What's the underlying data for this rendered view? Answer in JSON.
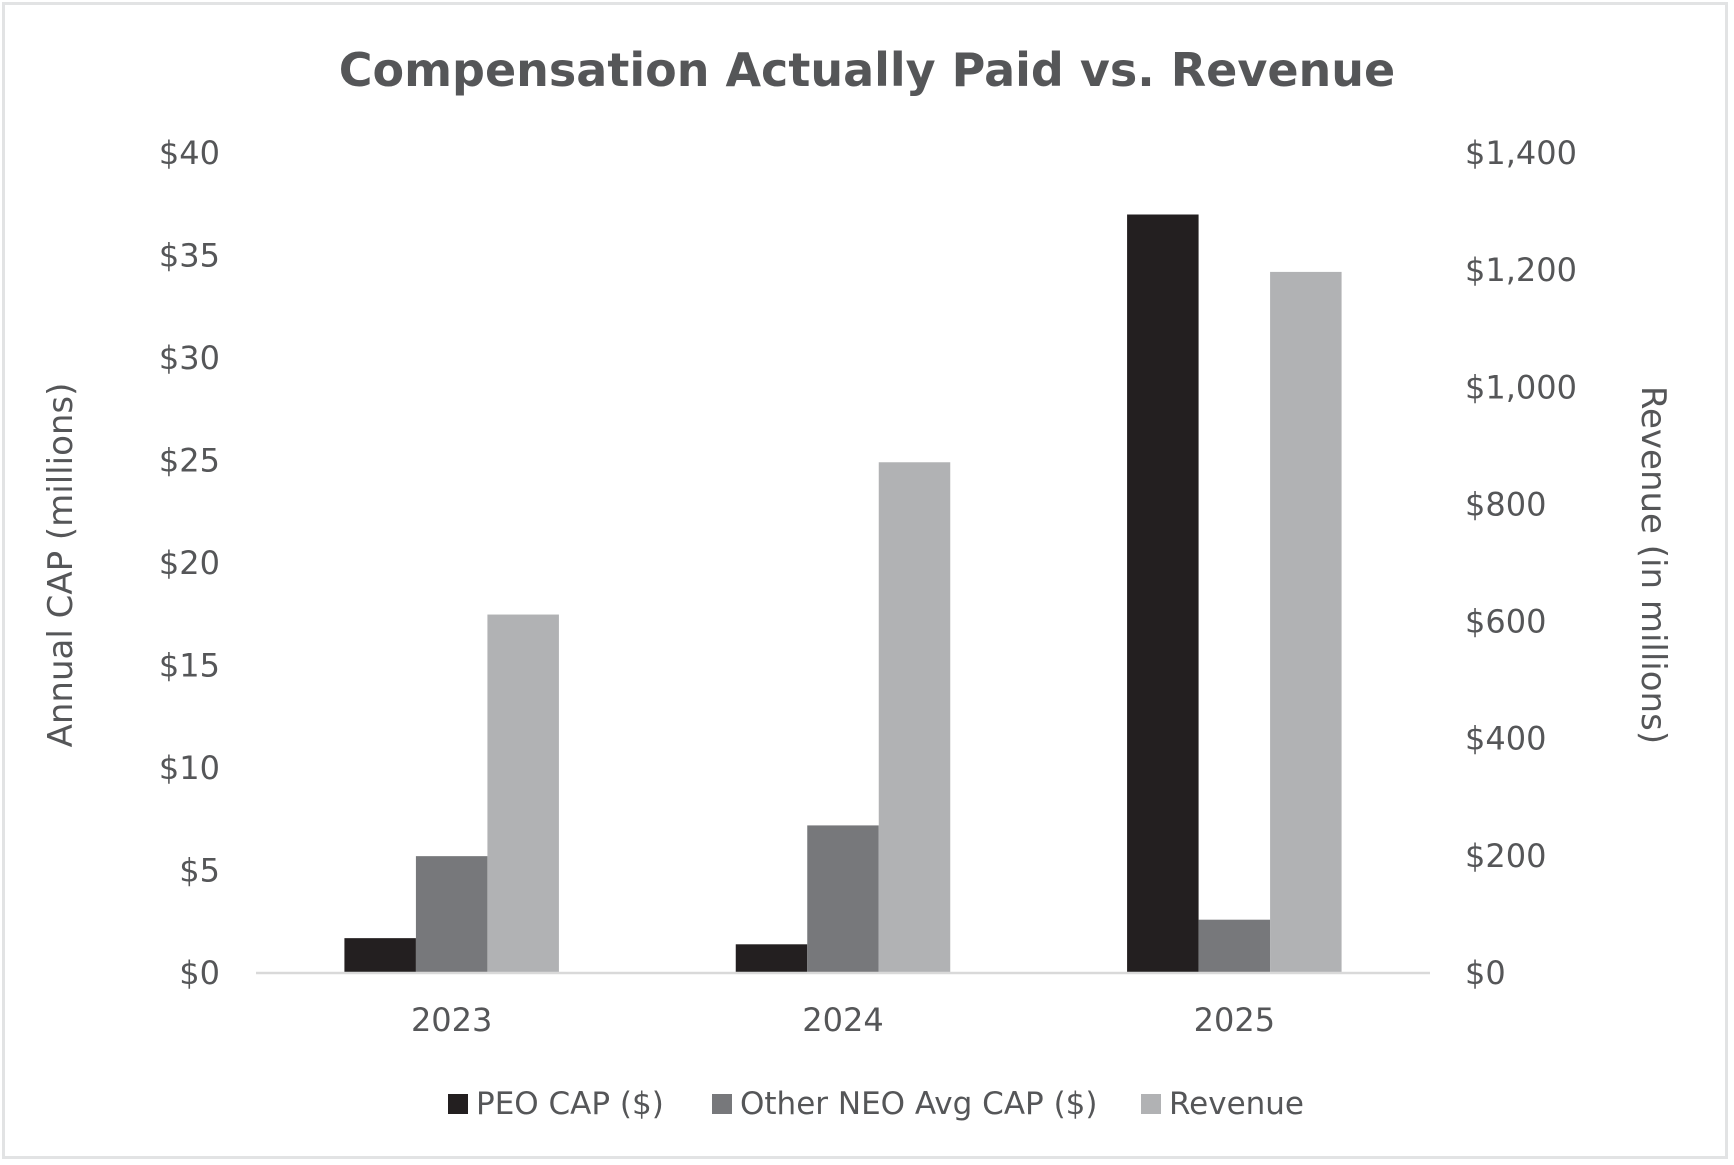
{
  "chart_data": {
    "type": "bar",
    "title": "Compensation Actually Paid vs. Revenue",
    "categories": [
      "2023",
      "2024",
      "2025"
    ],
    "series": [
      {
        "name": "PEO CAP ($)",
        "axis": "left",
        "color": "#231f20",
        "values": [
          1.7,
          1.4,
          37.0
        ]
      },
      {
        "name": "Other NEO Avg CAP ($)",
        "axis": "left",
        "color": "#77787b",
        "values": [
          5.7,
          7.2,
          2.6
        ]
      },
      {
        "name": "Revenue",
        "axis": "right",
        "color": "#b1b2b4",
        "values": [
          612,
          872,
          1197
        ]
      }
    ],
    "ylabel": "Annual CAP (millions)",
    "ylabel_right": "Revenue  (in millions)",
    "ylim": [
      0,
      40
    ],
    "ylim_right": [
      0,
      1400
    ],
    "yticks": [
      "$0",
      "$5",
      "$10",
      "$15",
      "$20",
      "$25",
      "$30",
      "$35",
      "$40"
    ],
    "yticks_right": [
      "$0",
      "$200",
      "$400",
      "$600",
      "$800",
      "$1,000",
      "$1,200",
      "$1,400"
    ],
    "grid": false,
    "legend_position": "bottom"
  }
}
